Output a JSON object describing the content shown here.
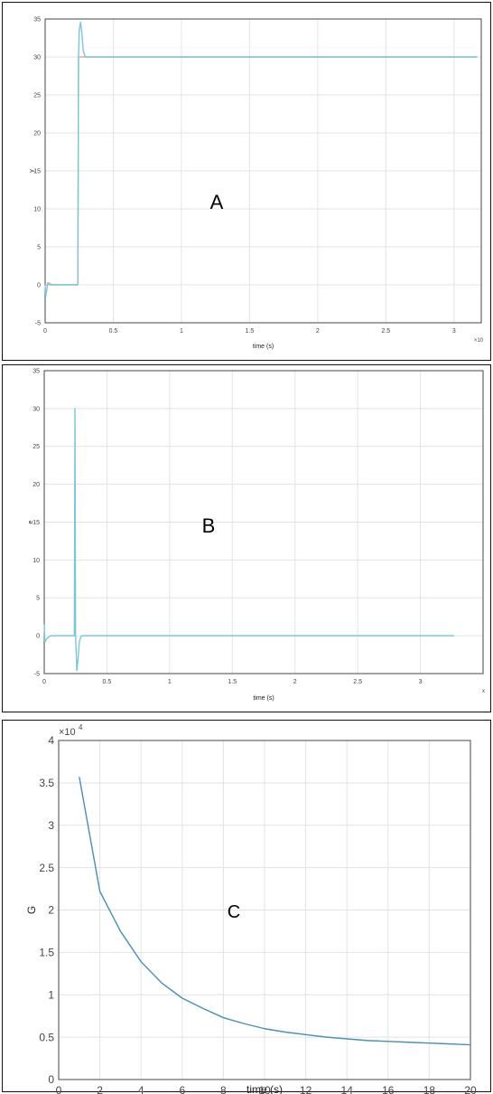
{
  "chart_data": [
    {
      "type": "line",
      "panel_letter": "A",
      "xlabel": "time (s)",
      "ylabel": "y",
      "x_exponent_label": "×10",
      "xlim": [
        0,
        3.2
      ],
      "ylim": [
        -5,
        35
      ],
      "x_ticks": [
        0,
        0.5,
        1,
        1.5,
        2,
        2.5,
        3
      ],
      "y_ticks": [
        -5,
        0,
        5,
        10,
        15,
        20,
        25,
        30,
        35
      ],
      "grid": true,
      "series": [
        {
          "color": "#e8a98c",
          "x": [
            0,
            0.24,
            0.245,
            3.17
          ],
          "y": [
            0,
            0,
            30,
            30
          ]
        },
        {
          "color": "#7cc6d8",
          "x": [
            0,
            0.005,
            0.02,
            0.04,
            0.06,
            0.08,
            0.24,
            0.245,
            0.25,
            0.26,
            0.27,
            0.28,
            0.29,
            0.3,
            3.17
          ],
          "y": [
            0,
            -1.5,
            0.3,
            0.1,
            0,
            0,
            0,
            30,
            33.5,
            34.6,
            33,
            30.8,
            30.2,
            30,
            30
          ]
        }
      ]
    },
    {
      "type": "line",
      "panel_letter": "B",
      "xlabel": "time (s)",
      "ylabel": "e",
      "x_exponent_label": "x",
      "xlim": [
        0,
        3.5
      ],
      "ylim": [
        -5,
        35
      ],
      "x_ticks": [
        0,
        0.5,
        1,
        1.5,
        2,
        2.5,
        3
      ],
      "y_ticks": [
        -5,
        0,
        5,
        10,
        15,
        20,
        25,
        30,
        35
      ],
      "grid": true,
      "series": [
        {
          "color": "#7cc6d8",
          "x": [
            0,
            0.005,
            0.02,
            0.04,
            0.06,
            0.24,
            0.245,
            0.25,
            0.26,
            0.27,
            0.28,
            0.29,
            0.3,
            3.27
          ],
          "y": [
            1.5,
            -0.8,
            -0.4,
            -0.1,
            0,
            0,
            30,
            0,
            -4.6,
            -3,
            -0.8,
            -0.2,
            0,
            0
          ]
        }
      ]
    },
    {
      "type": "line",
      "panel_letter": "C",
      "xlabel": "time (s)",
      "ylabel": "G",
      "y_exponent_label": "×10",
      "y_exponent_power": "4",
      "xlim": [
        0,
        20
      ],
      "ylim": [
        0,
        4
      ],
      "x_ticks": [
        0,
        2,
        4,
        6,
        8,
        10,
        12,
        14,
        16,
        18,
        20
      ],
      "y_ticks": [
        0,
        0.5,
        1,
        1.5,
        2,
        2.5,
        3,
        3.5,
        4
      ],
      "grid": true,
      "series": [
        {
          "color": "#4a8fb5",
          "x": [
            1,
            2,
            3,
            4,
            5,
            6,
            7,
            8,
            9,
            10,
            11,
            12,
            13,
            14,
            15,
            16,
            17,
            18,
            19,
            20
          ],
          "y": [
            3.57,
            2.22,
            1.75,
            1.39,
            1.14,
            0.96,
            0.84,
            0.73,
            0.66,
            0.6,
            0.56,
            0.53,
            0.5,
            0.48,
            0.46,
            0.45,
            0.44,
            0.43,
            0.42,
            0.41
          ]
        }
      ]
    }
  ]
}
